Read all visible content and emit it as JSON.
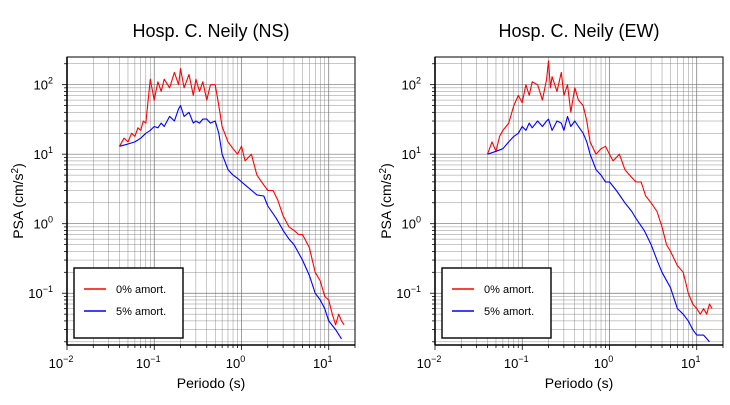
{
  "chart_data": [
    {
      "type": "line",
      "title": "Hosp. C. Neily (NS)",
      "xlabel": "Periodo (s)",
      "ylabel": "PSA (cm/s²)",
      "xscale": "log",
      "yscale": "log",
      "xlim": [
        0.01,
        20
      ],
      "ylim": [
        0.018,
        250
      ],
      "grid": true,
      "legend_position": "bottom-left",
      "series": [
        {
          "name": "0% amort.",
          "color": "#ff0000",
          "x": [
            0.04,
            0.045,
            0.05,
            0.055,
            0.06,
            0.065,
            0.07,
            0.075,
            0.08,
            0.09,
            0.1,
            0.11,
            0.12,
            0.13,
            0.15,
            0.17,
            0.19,
            0.2,
            0.22,
            0.25,
            0.28,
            0.3,
            0.33,
            0.36,
            0.4,
            0.44,
            0.5,
            0.55,
            0.6,
            0.7,
            0.8,
            0.9,
            1.0,
            1.1,
            1.3,
            1.5,
            1.7,
            2.0,
            2.3,
            2.6,
            3.0,
            3.5,
            4.0,
            4.5,
            5.0,
            6.0,
            7.0,
            8.0,
            9.0,
            10.0,
            11.0,
            12.0,
            13.0,
            14.0,
            15.0
          ],
          "y": [
            13,
            17,
            15,
            20,
            18,
            24,
            22,
            30,
            28,
            120,
            60,
            110,
            80,
            120,
            90,
            150,
            100,
            170,
            90,
            140,
            70,
            120,
            80,
            110,
            60,
            100,
            100,
            50,
            25,
            15,
            12,
            10,
            13,
            8,
            10,
            5,
            4,
            3,
            3,
            2.2,
            1.3,
            0.9,
            0.8,
            0.7,
            0.7,
            0.45,
            0.2,
            0.15,
            0.09,
            0.08,
            0.05,
            0.035,
            0.05,
            0.04,
            0.035
          ]
        },
        {
          "name": "5% amort.",
          "color": "#0000ff",
          "x": [
            0.04,
            0.05,
            0.06,
            0.07,
            0.08,
            0.09,
            0.1,
            0.11,
            0.12,
            0.13,
            0.15,
            0.17,
            0.19,
            0.2,
            0.22,
            0.25,
            0.28,
            0.3,
            0.33,
            0.36,
            0.4,
            0.44,
            0.5,
            0.55,
            0.6,
            0.7,
            0.8,
            0.9,
            1.0,
            1.2,
            1.5,
            1.8,
            2.0,
            2.5,
            3.0,
            3.5,
            4.0,
            5.0,
            6.0,
            7.0,
            8.0,
            9.0,
            10.0,
            12.0,
            14.0
          ],
          "y": [
            13,
            14,
            15,
            17,
            20,
            22,
            25,
            24,
            28,
            25,
            35,
            30,
            45,
            50,
            35,
            40,
            28,
            30,
            28,
            32,
            32,
            28,
            30,
            20,
            10,
            6,
            5,
            4.5,
            4,
            3.3,
            2.6,
            2.5,
            1.8,
            1.2,
            0.8,
            0.6,
            0.5,
            0.3,
            0.18,
            0.1,
            0.08,
            0.06,
            0.04,
            0.03,
            0.022
          ]
        }
      ]
    },
    {
      "type": "line",
      "title": "Hosp. C. Neily (EW)",
      "xlabel": "Periodo (s)",
      "ylabel": "PSA (cm/s²)",
      "xscale": "log",
      "yscale": "log",
      "xlim": [
        0.01,
        20
      ],
      "ylim": [
        0.018,
        250
      ],
      "grid": true,
      "legend_position": "bottom-left",
      "series": [
        {
          "name": "0% amort.",
          "color": "#ff0000",
          "x": [
            0.04,
            0.045,
            0.05,
            0.055,
            0.06,
            0.07,
            0.08,
            0.09,
            0.1,
            0.11,
            0.12,
            0.13,
            0.15,
            0.17,
            0.19,
            0.2,
            0.21,
            0.22,
            0.25,
            0.28,
            0.3,
            0.33,
            0.36,
            0.4,
            0.44,
            0.5,
            0.55,
            0.6,
            0.7,
            0.8,
            0.9,
            1.0,
            1.1,
            1.3,
            1.5,
            1.7,
            2.0,
            2.3,
            2.6,
            3.0,
            3.5,
            4.0,
            4.5,
            5.0,
            6.0,
            7.0,
            8.0,
            9.0,
            10.0,
            11.0,
            12.0,
            13.0,
            14.0,
            15.0
          ],
          "y": [
            10,
            15,
            11,
            18,
            22,
            28,
            50,
            70,
            55,
            100,
            70,
            110,
            100,
            60,
            120,
            220,
            90,
            130,
            80,
            150,
            70,
            100,
            40,
            90,
            60,
            50,
            30,
            15,
            10,
            12,
            13,
            10,
            8,
            10,
            6,
            5,
            4,
            4,
            2.5,
            2,
            1.5,
            0.9,
            0.5,
            0.4,
            0.25,
            0.2,
            0.1,
            0.07,
            0.06,
            0.05,
            0.06,
            0.05,
            0.07,
            0.06
          ]
        },
        {
          "name": "5% amort.",
          "color": "#0000ff",
          "x": [
            0.04,
            0.05,
            0.06,
            0.07,
            0.08,
            0.09,
            0.1,
            0.11,
            0.12,
            0.13,
            0.15,
            0.17,
            0.19,
            0.2,
            0.22,
            0.25,
            0.28,
            0.3,
            0.33,
            0.36,
            0.4,
            0.44,
            0.5,
            0.55,
            0.6,
            0.7,
            0.8,
            0.9,
            1.0,
            1.2,
            1.5,
            1.8,
            2.0,
            2.5,
            3.0,
            3.5,
            4.0,
            5.0,
            6.0,
            7.0,
            8.0,
            9.0,
            10.0,
            12.0,
            14.0
          ],
          "y": [
            10,
            11,
            12,
            15,
            18,
            20,
            25,
            22,
            28,
            24,
            30,
            25,
            30,
            32,
            22,
            30,
            28,
            22,
            35,
            25,
            30,
            25,
            20,
            15,
            10,
            6,
            5,
            4,
            4,
            3,
            2,
            1.5,
            1.2,
            0.8,
            0.5,
            0.3,
            0.2,
            0.12,
            0.06,
            0.05,
            0.04,
            0.03,
            0.025,
            0.025,
            0.02
          ]
        }
      ]
    }
  ]
}
